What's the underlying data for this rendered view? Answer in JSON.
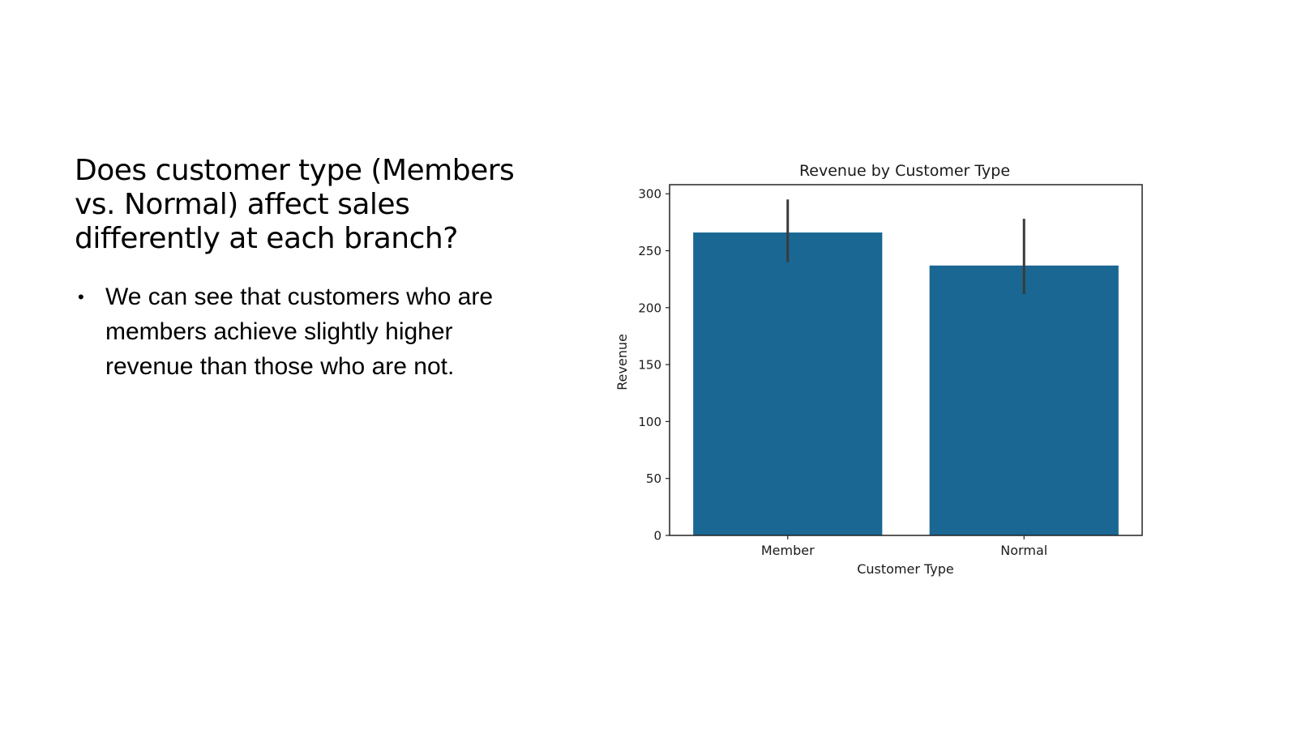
{
  "slide": {
    "title": "Does customer type (Members vs. Normal) affect sales differently at each branch?",
    "bullets": [
      "We can see that customers who are members achieve slightly higher revenue than those who are not."
    ]
  },
  "chart_data": {
    "type": "bar",
    "title": "Revenue by Customer Type",
    "xlabel": "Customer Type",
    "ylabel": "Revenue",
    "categories": [
      "Member",
      "Normal"
    ],
    "values": [
      266,
      237
    ],
    "error_bars": [
      [
        240,
        295
      ],
      [
        212,
        278
      ]
    ],
    "ylim": [
      0,
      308
    ],
    "yticks": [
      0,
      50,
      100,
      150,
      200,
      250,
      300
    ],
    "grid": false,
    "bar_color": "#1a6793",
    "error_color": "#3a3a3a"
  }
}
